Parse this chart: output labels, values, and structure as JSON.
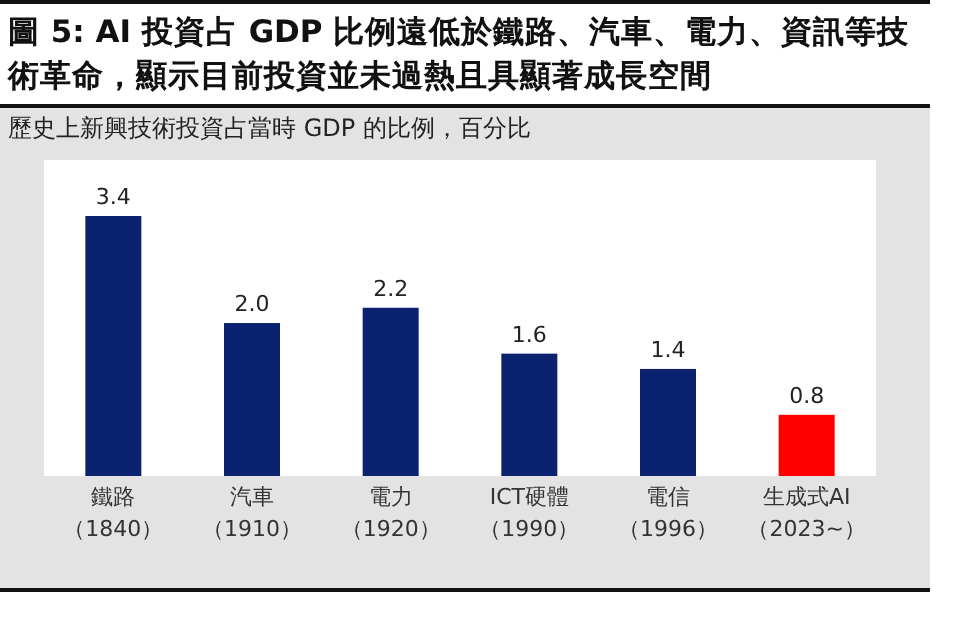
{
  "chart_data": {
    "type": "bar",
    "title": "圖 5: AI 投資占 GDP 比例遠低於鐵路、汽車、電力、資訊等技術革命，顯示目前投資並未過熱且具顯著成長空間",
    "subtitle": "歷史上新興技術投資占當時 GDP 的比例，百分比",
    "categories": [
      "鐵路（1840）",
      "汽車（1910）",
      "電力（1920）",
      "ICT硬體（1990）",
      "電信（1996）",
      "生成式AI（2023~）"
    ],
    "values": [
      3.4,
      2.0,
      2.2,
      1.6,
      1.4,
      0.8
    ],
    "colors": [
      "#0b2270",
      "#0b2270",
      "#0b2270",
      "#0b2270",
      "#0b2270",
      "#ff0000"
    ],
    "value_labels": [
      "3.4",
      "2.0",
      "2.2",
      "1.6",
      "1.4",
      "0.8"
    ]
  }
}
